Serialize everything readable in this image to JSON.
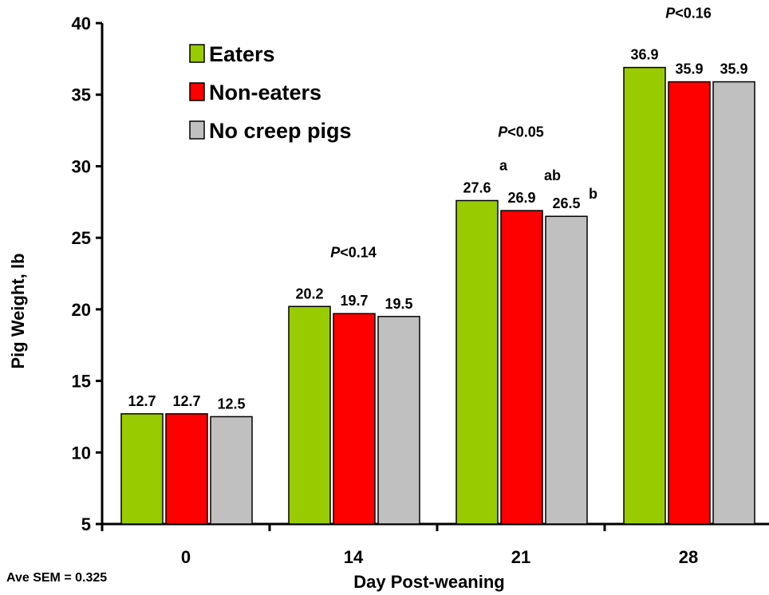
{
  "chart_data": {
    "type": "bar",
    "categories": [
      "0",
      "14",
      "21",
      "28"
    ],
    "series": [
      {
        "name": "Eaters",
        "color": "#99cc00",
        "values": [
          12.7,
          20.2,
          27.6,
          36.9
        ],
        "labels": [
          "12.7",
          "20.2",
          "27.6",
          "36.9"
        ]
      },
      {
        "name": "Non-eaters",
        "color": "#ff0000",
        "values": [
          12.7,
          19.7,
          26.9,
          35.9
        ],
        "labels": [
          "12.7",
          "19.7",
          "26.9",
          "35.9"
        ]
      },
      {
        "name": "No creep pigs",
        "color": "#c0c0c0",
        "values": [
          12.5,
          19.5,
          26.5,
          35.9
        ],
        "labels": [
          "12.5",
          "19.5",
          "26.5",
          "35.9"
        ]
      }
    ],
    "significance_letters": {
      "2": [
        "a",
        "ab",
        "b"
      ]
    },
    "p_values": [
      {
        "category": "14",
        "p": "P",
        "rest": "<0.14"
      },
      {
        "category": "21",
        "p": "P",
        "rest": "<0.05"
      },
      {
        "category": "28",
        "p": "P",
        "rest": "<0.16"
      }
    ],
    "title": "",
    "xlabel": "Day Post-weaning",
    "ylabel": "Pig Weight, lb",
    "ylim": [
      5,
      40
    ],
    "yticks": [
      "5",
      "10",
      "15",
      "20",
      "25",
      "30",
      "35",
      "40"
    ],
    "legend_position": "top-left",
    "grid": false
  },
  "footnote": "Ave SEM = 0.325"
}
